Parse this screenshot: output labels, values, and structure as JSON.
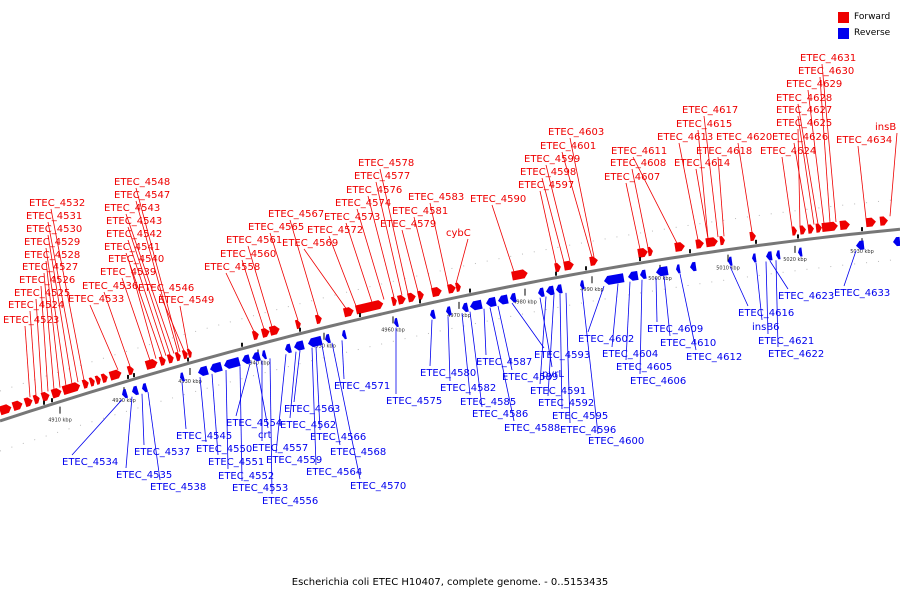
{
  "caption": "Escherichia coli ETEC H10407, complete genome. - 0..5153435",
  "legend": [
    {
      "label": "Forward",
      "color": "#ee0000"
    },
    {
      "label": "Reverse",
      "color": "#0000ee"
    }
  ],
  "colors": {
    "forward": "#ee0000",
    "reverse": "#0000ee",
    "backbone": "#777777"
  },
  "ticks": [
    "4910 kbp",
    "4920 kbp",
    "4930 kbp",
    "4940 kbp",
    "4950 kbp",
    "4960 kbp",
    "4970 kbp",
    "4980 kbp",
    "4990 kbp",
    "5000 kbp",
    "5010 kbp",
    "5020 kbp",
    "5030 kbp"
  ],
  "forward_labels": [
    "ETEC_4523",
    "ETEC_4524",
    "ETEC_4525",
    "ETEC_4526",
    "ETEC_4527",
    "ETEC_4528",
    "ETEC_4529",
    "ETEC_4530",
    "ETEC_4531",
    "ETEC_4532",
    "ETEC_4533",
    "ETEC_4536",
    "ETEC_4539",
    "ETEC_4540",
    "ETEC_4541",
    "ETEC_4542",
    "ETEC_4543",
    "ETEC_4543",
    "ETEC_4547",
    "ETEC_4548",
    "ETEC_4546",
    "ETEC_4549",
    "ETEC_4558",
    "ETEC_4560",
    "ETEC_4561",
    "ETEC_4565",
    "ETEC_4567",
    "ETEC_4569",
    "ETEC_4572",
    "ETEC_4573",
    "ETEC_4574",
    "ETEC_4576",
    "ETEC_4577",
    "ETEC_4578",
    "ETEC_4579",
    "ETEC_4581",
    "ETEC_4583",
    "cybC",
    "ETEC_4590",
    "ETEC_4597",
    "ETEC_4598",
    "ETEC_4599",
    "ETEC_4601",
    "ETEC_4603",
    "ETEC_4607",
    "ETEC_4608",
    "ETEC_4611",
    "ETEC_4613",
    "ETEC_4614",
    "ETEC_4615",
    "ETEC_4617",
    "ETEC_4618",
    "ETEC_4620",
    "ETEC_4624",
    "ETEC_4625",
    "ETEC_4626",
    "ETEC_4627",
    "ETEC_4628",
    "ETEC_4629",
    "ETEC_4630",
    "ETEC_4631",
    "ETEC_4634",
    "insB"
  ],
  "reverse_labels": [
    "ETEC_4534",
    "ETEC_4535",
    "ETEC_4537",
    "ETEC_4538",
    "ETEC_4545",
    "ETEC_4550",
    "ETEC_4551",
    "ETEC_4552",
    "ETEC_4553",
    "ETEC_4554",
    "crt",
    "ETEC_4557",
    "ETEC_4556",
    "ETEC_4559",
    "ETEC_4562",
    "ETEC_4563",
    "ETEC_4564",
    "ETEC_4566",
    "ETEC_4568",
    "ETEC_4570",
    "ETEC_4571",
    "ETEC_4575",
    "ETEC_4580",
    "ETEC_4582",
    "ETEC_4585",
    "ETEC_4586",
    "ETEC_4587",
    "ETEC_4588",
    "ETEC_4589",
    "ETEC_4593",
    "pyrL",
    "ETEC_4591",
    "ETEC_4592",
    "ETEC_4595",
    "ETEC_4596",
    "ETEC_4600",
    "ETEC_4602",
    "ETEC_4604",
    "ETEC_4605",
    "ETEC_4606",
    "ETEC_4609",
    "ETEC_4610",
    "ETEC_4612",
    "ETEC_4616",
    "insB6",
    "ETEC_4621",
    "ETEC_4622",
    "ETEC_4623",
    "ETEC_4633"
  ]
}
